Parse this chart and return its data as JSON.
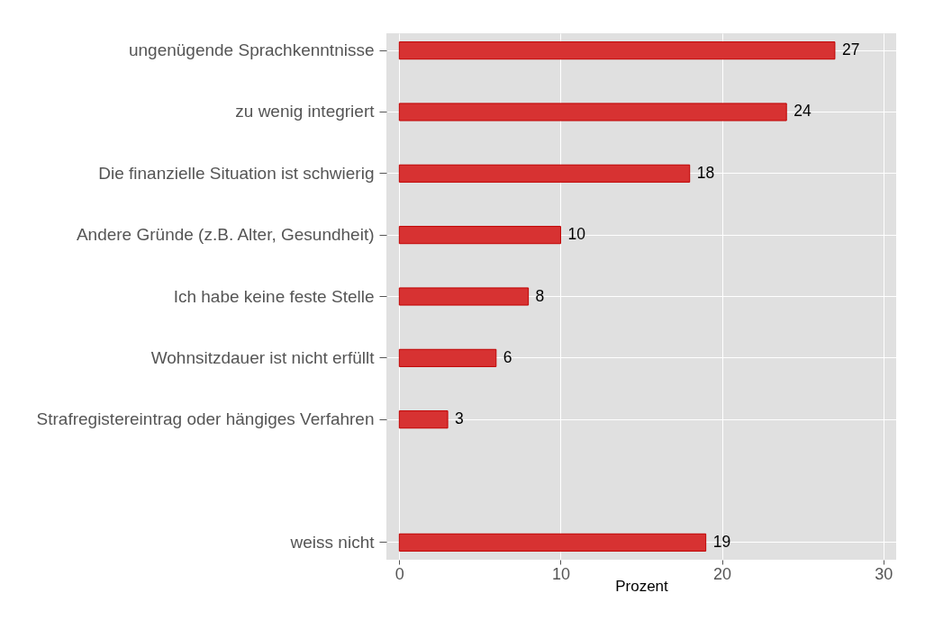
{
  "chart_data": {
    "type": "bar",
    "orientation": "horizontal",
    "xlabel": "Prozent",
    "categories": [
      "ungenügende Sprachkenntnisse",
      "zu wenig integriert",
      "Die finanzielle Situation ist schwierig",
      "Andere Gründe (z.B. Alter, Gesundheit)",
      "Ich habe keine feste Stelle",
      "Wohnsitzdauer ist nicht erfüllt",
      "Strafregistereintrag oder hängiges Verfahren",
      null,
      "weiss nicht"
    ],
    "values": [
      27,
      24,
      18,
      10,
      8,
      6,
      3,
      null,
      19
    ],
    "color": "#d73232",
    "xlim": [
      -0.8,
      30.8
    ],
    "xticks": [
      0,
      10,
      20,
      30
    ],
    "grid": true,
    "data_labels": true
  }
}
